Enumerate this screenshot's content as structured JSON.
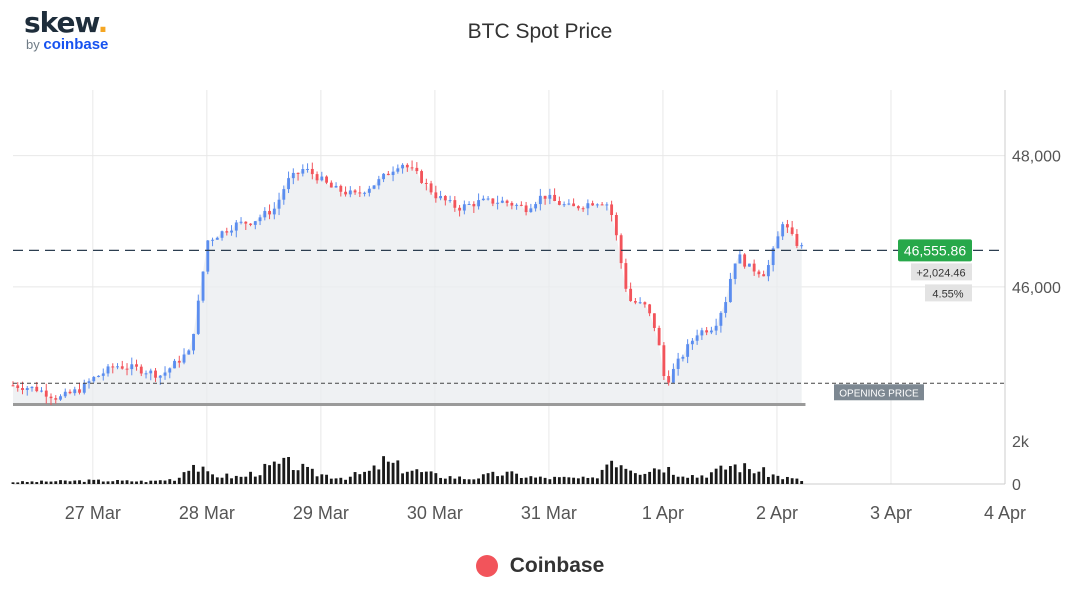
{
  "logo": {
    "brand": "skew",
    "dot": ".",
    "by": "by",
    "partner": "coinbase"
  },
  "chart_data": {
    "type": "candlestick",
    "title": "BTC Spot Price",
    "x_ticks": [
      "27 Mar",
      "28 Mar",
      "29 Mar",
      "30 Mar",
      "31 Mar",
      "1 Apr",
      "2 Apr",
      "3 Apr",
      "4 Apr"
    ],
    "xlim_days": [
      -0.7,
      8.0
    ],
    "price_ylim": [
      44200,
      49000
    ],
    "price_ticks": [
      {
        "label": "48,000",
        "value": 48000
      },
      {
        "label": "46,000",
        "value": 46000
      }
    ],
    "volume_ylim": [
      0,
      2500
    ],
    "volume_ticks": [
      {
        "label": "2k",
        "value": 2000
      },
      {
        "label": "0",
        "value": 0
      }
    ],
    "opening_price": 44531,
    "opening_label": "OPENING PRICE",
    "last_price": 46555.86,
    "last_price_label": "46,555.86",
    "change_label": "+2,024.46",
    "change_pct_label": "4.55%",
    "colors": {
      "up": "#5b8def",
      "down": "#f2545b",
      "badge": "#27a84a",
      "grid": "#e8e8e8",
      "axis": "#777777"
    },
    "grid": true,
    "legend": {
      "position": "bottom-center",
      "entries": [
        "Coinbase"
      ]
    },
    "price_keypoints": [
      [
        -0.7,
        44500
      ],
      [
        -0.5,
        44450
      ],
      [
        -0.3,
        44300
      ],
      [
        -0.1,
        44450
      ],
      [
        0.0,
        44600
      ],
      [
        0.2,
        44800
      ],
      [
        0.4,
        44750
      ],
      [
        0.6,
        44650
      ],
      [
        0.8,
        44950
      ],
      [
        0.85,
        45000
      ],
      [
        0.95,
        46000
      ],
      [
        1.0,
        46700
      ],
      [
        1.1,
        46800
      ],
      [
        1.25,
        46950
      ],
      [
        1.4,
        47000
      ],
      [
        1.6,
        47200
      ],
      [
        1.7,
        47600
      ],
      [
        1.85,
        47800
      ],
      [
        1.95,
        47700
      ],
      [
        2.1,
        47500
      ],
      [
        2.3,
        47400
      ],
      [
        2.5,
        47600
      ],
      [
        2.7,
        47900
      ],
      [
        2.85,
        47700
      ],
      [
        3.0,
        47400
      ],
      [
        3.2,
        47200
      ],
      [
        3.4,
        47300
      ],
      [
        3.6,
        47300
      ],
      [
        3.8,
        47200
      ],
      [
        3.95,
        47400
      ],
      [
        4.05,
        47300
      ],
      [
        4.2,
        47200
      ],
      [
        4.4,
        47300
      ],
      [
        4.5,
        47300
      ],
      [
        4.55,
        47100
      ],
      [
        4.6,
        46700
      ],
      [
        4.65,
        46200
      ],
      [
        4.7,
        45800
      ],
      [
        4.85,
        45700
      ],
      [
        4.95,
        45300
      ],
      [
        5.0,
        44650
      ],
      [
        5.05,
        44600
      ],
      [
        5.15,
        44900
      ],
      [
        5.3,
        45300
      ],
      [
        5.45,
        45400
      ],
      [
        5.55,
        45800
      ],
      [
        5.6,
        46200
      ],
      [
        5.65,
        46500
      ],
      [
        5.75,
        46300
      ],
      [
        5.9,
        46200
      ],
      [
        6.0,
        46700
      ],
      [
        6.05,
        47000
      ],
      [
        6.15,
        46700
      ],
      [
        6.25,
        46550
      ]
    ],
    "volume_keypoints": [
      [
        -0.7,
        100
      ],
      [
        0.0,
        180
      ],
      [
        0.5,
        140
      ],
      [
        0.75,
        280
      ],
      [
        0.85,
        1150
      ],
      [
        0.95,
        750
      ],
      [
        1.0,
        500
      ],
      [
        1.3,
        350
      ],
      [
        1.6,
        950
      ],
      [
        1.75,
        1050
      ],
      [
        1.9,
        600
      ],
      [
        2.2,
        320
      ],
      [
        2.45,
        650
      ],
      [
        2.55,
        1150
      ],
      [
        2.7,
        850
      ],
      [
        3.0,
        450
      ],
      [
        3.3,
        280
      ],
      [
        3.6,
        550
      ],
      [
        3.9,
        320
      ],
      [
        4.2,
        300
      ],
      [
        4.4,
        250
      ],
      [
        4.5,
        1050
      ],
      [
        4.55,
        1400
      ],
      [
        4.65,
        1100
      ],
      [
        4.8,
        700
      ],
      [
        5.0,
        950
      ],
      [
        5.1,
        650
      ],
      [
        5.3,
        400
      ],
      [
        5.5,
        700
      ],
      [
        5.6,
        1000
      ],
      [
        5.75,
        800
      ],
      [
        5.9,
        600
      ],
      [
        6.0,
        400
      ],
      [
        6.25,
        150
      ]
    ]
  },
  "legend": {
    "series": "Coinbase"
  }
}
